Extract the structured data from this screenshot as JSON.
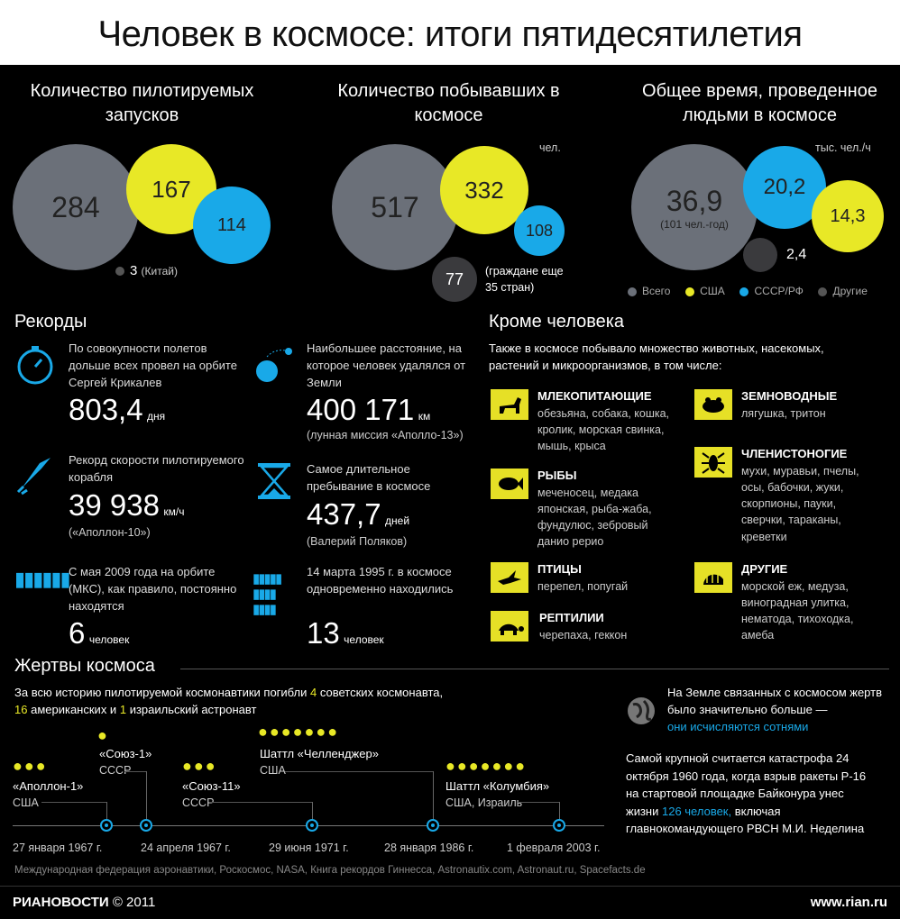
{
  "title": "Человек в космосе: итоги пятидесятилетия",
  "launches": {
    "title": "Количество пилотируемых запусков",
    "total": "284",
    "usa": "167",
    "ussr": "114",
    "other": "3",
    "other_label": "(Китай)"
  },
  "visitors": {
    "title": "Количество побывавших в космосе",
    "unit": "чел.",
    "total": "517",
    "usa": "332",
    "ussr": "108",
    "other": "77",
    "other_label": "(граждане еще 35 стран)"
  },
  "time": {
    "title": "Общее время, проведенное людьми в космосе",
    "unit": "тыс. чел./ч",
    "total": "36,9",
    "total_sub": "(101 чел.-год)",
    "ussr": "20,2",
    "usa": "14,3",
    "other": "2,4"
  },
  "legend": [
    "Всего",
    "США",
    "СССР/РФ",
    "Другие"
  ],
  "records": {
    "title": "Рекорды",
    "r1_text": "По совокупности полетов дольше всех провел на орбите Сергей Крикалев",
    "r1_value": "803,4",
    "r1_unit": "дня",
    "r2_text": "Наибольшее расстояние, на которое человек удалялся от Земли",
    "r2_value": "400 171",
    "r2_unit": "км",
    "r2_note": "(лунная миссия «Аполло-13»)",
    "r3_text": "Рекорд скорости пилотируемого корабля",
    "r3_value": "39 938",
    "r3_unit": "км/ч",
    "r3_note": "(«Аполлон-10»)",
    "r4_text": "Самое длительное пребывание в космосе",
    "r4_value": "437,7",
    "r4_unit": "дней",
    "r4_note": "(Валерий Поляков)",
    "r5_text": "С мая 2009 года на орбите (МКС), как правило, постоянно находятся",
    "r5_value": "6",
    "r5_unit": "человек",
    "r6_text": "14 марта 1995 г. в космосе одновременно находились",
    "r6_value": "13",
    "r6_unit": "человек"
  },
  "beyond": {
    "title": "Кроме человека",
    "intro": "Также в космосе побывало множество животных, насекомых, растений и микроорганизмов, в том числе:",
    "mammals": "МЛЕКОПИТАЮЩИЕ",
    "mammals_list": "обезьяна, собака, кошка, кролик, морская свинка, мышь, крыса",
    "fish": "РЫБЫ",
    "fish_list": "меченосец, медака японская, рыба-жаба, фундулюс, зебровый данио рерио",
    "birds": "ПТИЦЫ",
    "birds_list": "перепел, попугай",
    "reptiles": "РЕПТИЛИИ",
    "reptiles_list": "черепаха, геккон",
    "amphibians": "ЗЕМНОВОДНЫЕ",
    "amphibians_list": "лягушка, тритон",
    "arthropods": "ЧЛЕНИСТОНОГИЕ",
    "arthropods_list": "мухи, муравьи, пчелы, осы, бабочки, жуки, скорпионы, пауки, сверчки, тараканы, креветки",
    "others": "ДРУГИЕ",
    "others_list": "морской еж, медуза, виноградная улитка, нематода, тихоходка, амеба"
  },
  "victims": {
    "title": "Жертвы космоса",
    "intro_a": "За всю историю пилотируемой космонавтики погибли",
    "n_soviet": "4",
    "intro_b": "советских космонавта,",
    "n_usa": "16",
    "intro_c": "американских и",
    "n_israel": "1",
    "intro_d": "израильский астронавт",
    "e1_name": "«Аполлон-1»",
    "e1_country": "США",
    "e1_date": "27 января 1967 г.",
    "e2_name": "«Союз-1»",
    "e2_country": "СССР",
    "e2_date": "24 апреля 1967 г.",
    "e3_name": "«Союз-11»",
    "e3_country": "СССР",
    "e3_date": "29 июня 1971 г.",
    "e4_name": "Шаттл «Челленджер»",
    "e4_country": "США",
    "e4_date": "28 января 1986 г.",
    "e5_name": "Шаттл «Колумбия»",
    "e5_country": "США, Израиль",
    "e5_date": "1 февраля 2003 г.",
    "earth_a": "На Земле связанных с космосом жертв было значительно больше —",
    "earth_b": "они исчисляются сотнями",
    "cat_a": "Самой крупной считается катастрофа 24 октября 1960 года, когда взрыв ракеты Р-16 на стартовой площадке Байконура унес жизни",
    "cat_b": "126 человек,",
    "cat_c": "включая главнокомандующего РВСН М.И. Неделина"
  },
  "sources": "Международная федерация аэронавтики, Роскосмос, NASA, Книга рекордов Гиннесса, Astronautix.com, Astronaut.ru, Spacefacts.de",
  "footer": {
    "brand": "РИАНОВОСТИ",
    "copy": "© 2011",
    "site": "www.rian.ru"
  }
}
